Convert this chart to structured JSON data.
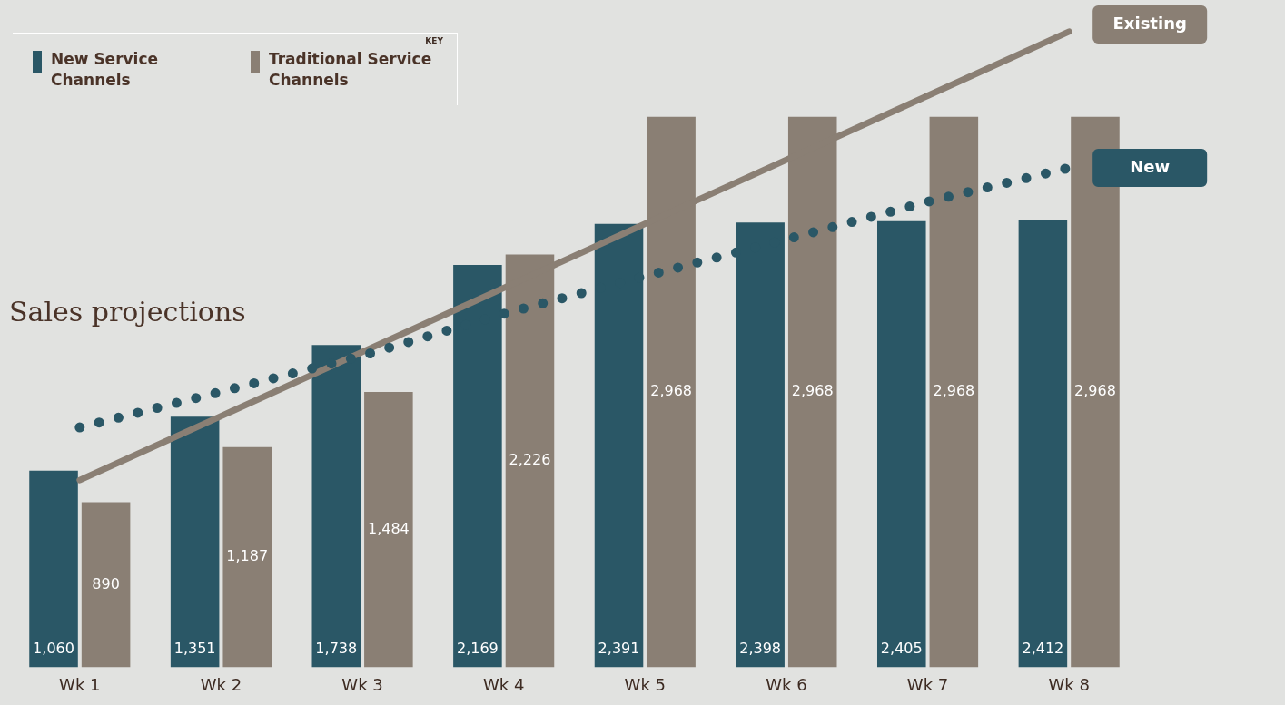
{
  "chart_data": {
    "type": "bar",
    "title": "Sales projections",
    "legend_title": "KEY",
    "legend": "top left",
    "categories": [
      "Wk 1",
      "Wk 2",
      "Wk 3",
      "Wk 4",
      "Wk 5",
      "Wk 6",
      "Wk 7",
      "Wk 8"
    ],
    "series": [
      {
        "name": "New Service Channels",
        "color": "#2a5766",
        "values": [
          1060,
          1351,
          1738,
          2169,
          2391,
          2398,
          2405,
          2412
        ],
        "value_labels": [
          "1,060",
          "1,351",
          "1,738",
          "2,169",
          "2,391",
          "2,398",
          "2,405",
          "2,412"
        ]
      },
      {
        "name": "Traditional Service Channels",
        "color": "#8a7f74",
        "values": [
          890,
          1187,
          1484,
          2226,
          2968,
          2968,
          2968,
          2968
        ],
        "value_labels": [
          "890",
          "1,187",
          "1,484",
          "2,226",
          "2,968",
          "2,968",
          "2,968",
          "2,968"
        ]
      },
      {
        "name": "New",
        "type": "line",
        "line_style": "dotted",
        "marker": "none",
        "color": "#2a5766",
        "values": [
          1293,
          1486,
          1680,
          1906,
          2109,
          2307,
          2510,
          2693
        ]
      },
      {
        "name": "Existing",
        "type": "line",
        "line_style": "solid",
        "marker": "none",
        "color": "#8a7f74",
        "values": [
          1009,
          1354,
          1700,
          2045,
          2391,
          2736,
          3082,
          3427
        ]
      }
    ],
    "tick_labels": "x",
    "grid": false
  }
}
